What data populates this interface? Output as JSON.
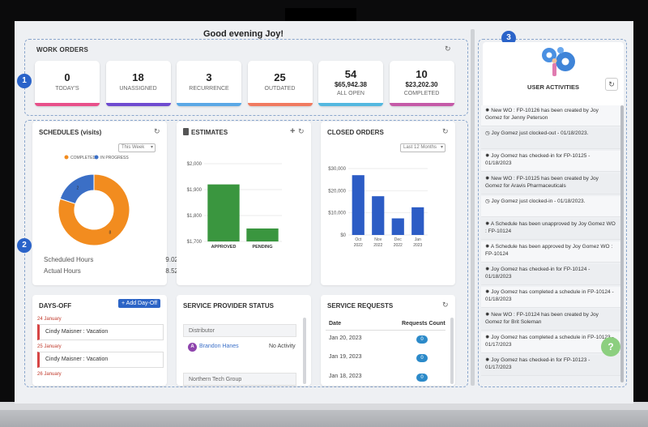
{
  "greeting": "Good evening Joy!",
  "badges": [
    "1",
    "2",
    "3"
  ],
  "work_orders": {
    "title": "WORK ORDERS",
    "cards": [
      {
        "value": "0",
        "amount": "",
        "label": "TODAY'S",
        "color": "#e8508a"
      },
      {
        "value": "18",
        "amount": "",
        "label": "UNASSIGNED",
        "color": "#6e4bd0"
      },
      {
        "value": "3",
        "amount": "",
        "label": "RECURRENCE",
        "color": "#5aa8e6"
      },
      {
        "value": "25",
        "amount": "",
        "label": "OUTDATED",
        "color": "#f07b60"
      },
      {
        "value": "54",
        "amount": "$65,942.38",
        "label": "ALL OPEN",
        "color": "#53b8e0"
      },
      {
        "value": "10",
        "amount": "$23,202.30",
        "label": "COMPLETED",
        "color": "#c55aa8"
      }
    ]
  },
  "schedules": {
    "title": "SCHEDULES (visits)",
    "filter": "This Week",
    "legend": [
      {
        "name": "COMPLETED",
        "color": "#f28c1f"
      },
      {
        "name": "IN PROGRESS",
        "color": "#3b6fc6"
      }
    ],
    "scheduled_label": "Scheduled Hours",
    "scheduled_value": "9.02",
    "actual_label": "Actual Hours",
    "actual_value": "8.52"
  },
  "estimates": {
    "title": "ESTIMATES",
    "add_icon": "+",
    "color_approved": "#3a963f",
    "color_pending": "#3a963f"
  },
  "closed_orders": {
    "title": "CLOSED ORDERS",
    "filter": "Last 12 Months",
    "color": "#2c5cc5"
  },
  "chart_data": [
    {
      "type": "pie",
      "title": "SCHEDULES (visits)",
      "categories": [
        "COMPLETED",
        "IN PROGRESS"
      ],
      "values": [
        8,
        2
      ],
      "slice_labels": [
        "8",
        "2"
      ],
      "donut": true
    },
    {
      "type": "bar",
      "title": "ESTIMATES",
      "categories": [
        "APPROVED",
        "PENDING"
      ],
      "values": [
        1920,
        1750
      ],
      "ylim": [
        1700,
        2000
      ],
      "yticks": [
        "$1,700",
        "$1,800",
        "$1,900",
        "$2,000"
      ],
      "grid": true
    },
    {
      "type": "bar",
      "title": "CLOSED ORDERS",
      "categories": [
        [
          "Oct",
          "2022"
        ],
        [
          "Nov",
          "2022"
        ],
        [
          "Dec",
          "2022"
        ],
        [
          "Jan",
          "2023"
        ]
      ],
      "values": [
        27000,
        17500,
        7500,
        12500
      ],
      "ylim": [
        0,
        30000
      ],
      "yticks": [
        "$0",
        "$10,000",
        "$20,000",
        "$30,000"
      ],
      "grid": true
    }
  ],
  "days_off": {
    "title": "DAYS-OFF",
    "add_button": "+ Add Day-Off",
    "entries": [
      {
        "date": "24 January",
        "text": "Cindy Maisner : Vacation"
      },
      {
        "date": "25 January",
        "text": "Cindy Maisner : Vacation"
      },
      {
        "date": "26 January",
        "text": ""
      }
    ]
  },
  "service_provider": {
    "title": "SERVICE PROVIDER STATUS",
    "groups": [
      {
        "name": "Distributor",
        "provider": "Brandon Hanes",
        "initial": "A",
        "status": "No Activity"
      },
      {
        "name": "Northern Tech Group",
        "provider": "",
        "initial": "",
        "status": ""
      }
    ]
  },
  "service_requests": {
    "title": "SERVICE REQUESTS",
    "col_date": "Date",
    "col_count": "Requests Count",
    "rows": [
      {
        "date": "Jan 20, 2023",
        "count": "0"
      },
      {
        "date": "Jan 19, 2023",
        "count": "0"
      },
      {
        "date": "Jan 18, 2023",
        "count": "0"
      }
    ]
  },
  "user_activities": {
    "title": "USER ACTIVITIES",
    "items": [
      "✹ New WO : FP-10126 has been created by Joy Gomez for Jenny Peterson",
      "◷ Joy Gomez just clocked-out - 01/18/2023.",
      "✹ Joy Gomez has checked-in for FP-10125 - 01/18/2023",
      "✹ New WO : FP-10125 has been created by Joy Gomez for Aravis Pharmaceuticals",
      "◷ Joy Gomez just clocked-in - 01/18/2023.",
      "✹ A Schedule has been unapproved by Joy Gomez WO : FP-10124",
      "✹ A Schedule has been approved by Joy Gomez WO : FP-10124",
      "✹ Joy Gomez has checked-in for FP-10124 - 01/18/2023",
      "✹ Joy Gomez has completed a schedule in FP-10124 - 01/18/2023",
      "✹ New WO : FP-10124 has been created by Joy Gomez for Brit Soleman",
      "✹ Joy Gomez has completed a schedule in FP-10123 - 01/17/2023",
      "✹ Joy Gomez has checked-in for FP-10123 - 01/17/2023"
    ]
  },
  "help_label": "?",
  "refresh_icon": "↻"
}
